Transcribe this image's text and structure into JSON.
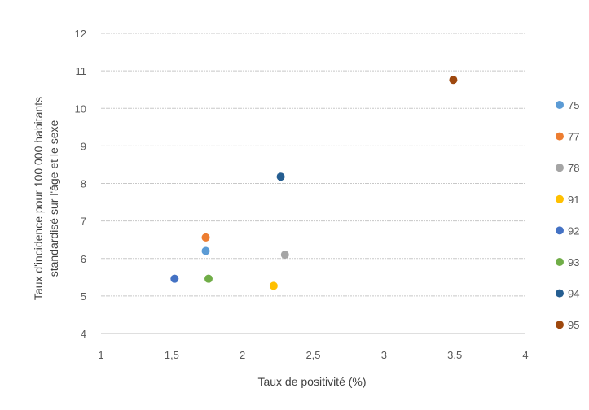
{
  "chart_data": {
    "type": "scatter",
    "xlabel": "Taux de positivité (%)",
    "ylabel": [
      "Taux d'incidence pour 100 000 habitants",
      "standardisé sur l'âge et le sexe"
    ],
    "xlim": [
      1,
      4
    ],
    "ylim": [
      4,
      12
    ],
    "x_ticks": [
      "1",
      "1,5",
      "2",
      "2,5",
      "3",
      "3,5",
      "4"
    ],
    "y_ticks": [
      "4",
      "5",
      "6",
      "7",
      "8",
      "9",
      "10",
      "11",
      "12"
    ],
    "grid": "horizontal",
    "legend_position": "right",
    "series": [
      {
        "name": "75",
        "color": "#5b9bd5",
        "x": 1.74,
        "y": 6.2
      },
      {
        "name": "77",
        "color": "#ed7d31",
        "x": 1.74,
        "y": 6.56
      },
      {
        "name": "78",
        "color": "#a5a5a5",
        "x": 2.3,
        "y": 6.1
      },
      {
        "name": "91",
        "color": "#ffc000",
        "x": 2.22,
        "y": 5.27
      },
      {
        "name": "92",
        "color": "#4472c4",
        "x": 1.52,
        "y": 5.46
      },
      {
        "name": "93",
        "color": "#70ad47",
        "x": 1.76,
        "y": 5.46
      },
      {
        "name": "94",
        "color": "#255e91",
        "x": 2.27,
        "y": 8.18
      },
      {
        "name": "95",
        "color": "#9e480e",
        "x": 3.49,
        "y": 10.76
      }
    ]
  }
}
